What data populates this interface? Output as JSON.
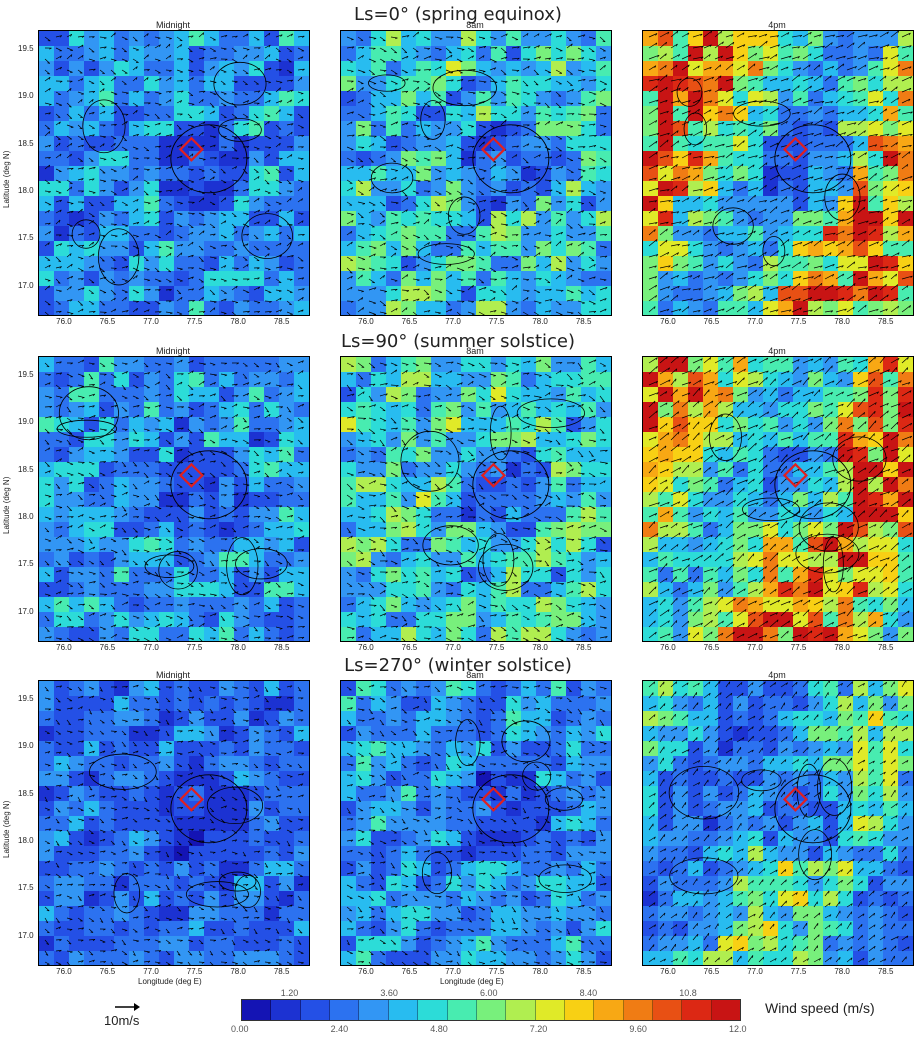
{
  "rows": [
    {
      "title": "Ls=0° (spring equinox)",
      "panels": [
        "Midnight",
        "8am",
        "4pm"
      ],
      "intensity": [
        0.28,
        0.38,
        0.72
      ]
    },
    {
      "title": "Ls=90° (summer solstice)",
      "panels": [
        "Midnight",
        "8am",
        "4pm"
      ],
      "intensity": [
        0.3,
        0.4,
        0.8
      ]
    },
    {
      "title": "Ls=270° (winter solstice)",
      "panels": [
        "Midnight",
        "8am",
        "4pm"
      ],
      "intensity": [
        0.22,
        0.28,
        0.45
      ]
    }
  ],
  "chart_data": {
    "type": "heatmap",
    "xlabel": "Longitude (deg E)",
    "ylabel": "Latitude (deg N)",
    "x_ticks": [
      "76.0",
      "76.5",
      "77.0",
      "77.5",
      "78.0",
      "78.5"
    ],
    "y_ticks": [
      "19.5",
      "19.0",
      "18.5",
      "18.0",
      "17.5",
      "17.0"
    ],
    "xlim": [
      75.7,
      78.8
    ],
    "ylim": [
      16.7,
      19.7
    ],
    "marker": {
      "lon": 77.45,
      "lat": 18.45,
      "color": "#e02020"
    },
    "reference_vector": "10m/s",
    "colorbar": {
      "label": "Wind speed (m/s)",
      "min": 0.0,
      "max": 12.0,
      "top_labels": [
        "1.20",
        "3.60",
        "6.00",
        "8.40",
        "10.8"
      ],
      "bottom_labels": [
        "0.00",
        "2.40",
        "4.80",
        "7.20",
        "9.60",
        "12.0"
      ],
      "colors": [
        "#1414b4",
        "#1c32d2",
        "#2450e6",
        "#2c72f0",
        "#3296f4",
        "#28bcf0",
        "#2cdcd8",
        "#48ecb0",
        "#78f07c",
        "#b0ee50",
        "#e0ea28",
        "#f8d014",
        "#f8a814",
        "#f07c14",
        "#e85014",
        "#dc2814",
        "#c81414"
      ]
    }
  }
}
